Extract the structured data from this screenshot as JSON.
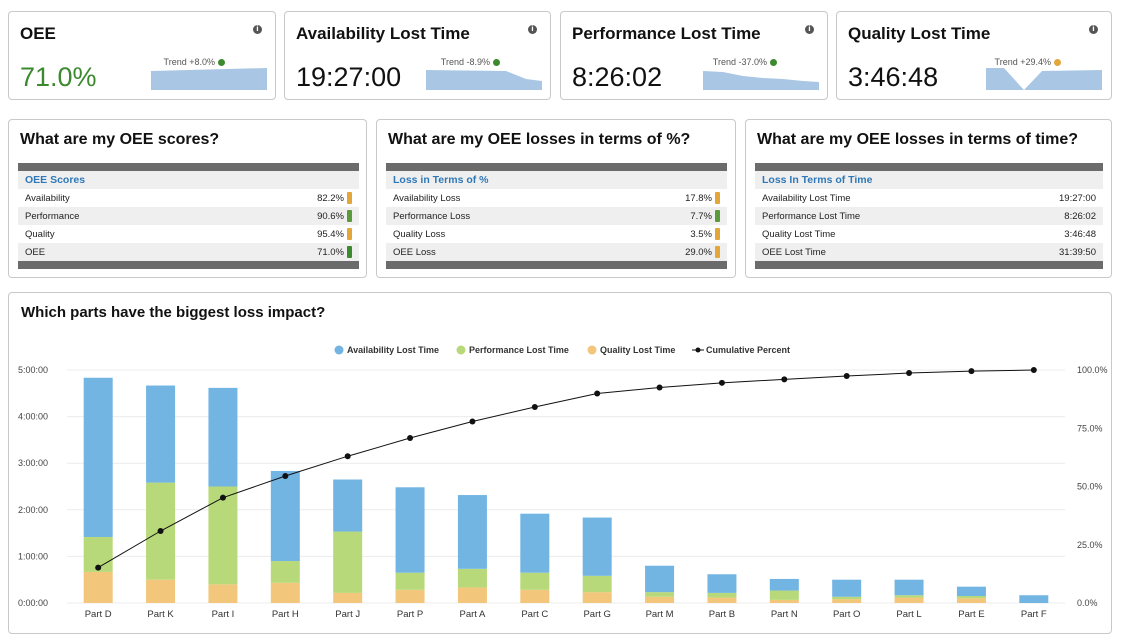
{
  "kpis": [
    {
      "title": "OEE",
      "value": "71.0%",
      "trend": "Trend +8.0%",
      "dot_color": "#3b8a2e"
    },
    {
      "title": "Availability Lost Time",
      "value": "19:27:00",
      "trend": "Trend -8.9%",
      "dot_color": "#3b8a2e"
    },
    {
      "title": "Performance Lost Time",
      "value": "8:26:02",
      "trend": "Trend -37.0%",
      "dot_color": "#3b8a2e"
    },
    {
      "title": "Quality Lost Time",
      "value": "3:46:48",
      "trend": "Trend +29.4%",
      "dot_color": "#e3a63a"
    }
  ],
  "info_icon": "info-icon",
  "panels": [
    {
      "title": "What are my OEE scores?",
      "header": "OEE Scores",
      "rows": [
        {
          "label": "Availability",
          "value": "82.2%",
          "color": "#e3a63a"
        },
        {
          "label": "Performance",
          "value": "90.6%",
          "color": "#5a9a3d"
        },
        {
          "label": "Quality",
          "value": "95.4%",
          "color": "#e3a63a"
        },
        {
          "label": "OEE",
          "value": "71.0%",
          "color": "#3b8a2e"
        }
      ]
    },
    {
      "title": "What are my OEE losses in terms of %?",
      "header": "Loss in Terms of %",
      "rows": [
        {
          "label": "Availability Loss",
          "value": "17.8%",
          "color": "#e3a63a"
        },
        {
          "label": "Performance Loss",
          "value": "7.7%",
          "color": "#5a9a3d"
        },
        {
          "label": "Quality Loss",
          "value": "3.5%",
          "color": "#e3a63a"
        },
        {
          "label": "OEE Loss",
          "value": "29.0%",
          "color": "#e3a63a"
        }
      ]
    },
    {
      "title": "What are my OEE losses in terms of time?",
      "header": "Loss In Terms of Time",
      "rows": [
        {
          "label": "Availability Lost Time",
          "value": "19:27:00"
        },
        {
          "label": "Performance Lost Time",
          "value": "8:26:02"
        },
        {
          "label": "Quality Lost Time",
          "value": "3:46:48"
        },
        {
          "label": "OEE Lost Time",
          "value": "31:39:50"
        }
      ]
    }
  ],
  "chart_title": "Which parts have the biggest loss impact?",
  "colors": {
    "availability": "#72b5e3",
    "performance": "#b8d97a",
    "quality": "#f3c77b",
    "cumulative": "#111111"
  },
  "chart_data": {
    "type": "bar",
    "stacked": true,
    "categories": [
      "Part D",
      "Part K",
      "Part I",
      "Part H",
      "Part J",
      "Part P",
      "Part A",
      "Part C",
      "Part G",
      "Part M",
      "Part B",
      "Part N",
      "Part O",
      "Part L",
      "Part E",
      "Part F"
    ],
    "series": [
      {
        "name": "Availability Lost Time",
        "color": "#72b5e3",
        "values": [
          205,
          125,
          127,
          116,
          67,
          110,
          95,
          76,
          75,
          34,
          24,
          15,
          22,
          20,
          12,
          10
        ]
      },
      {
        "name": "Performance Lost Time",
        "color": "#b8d97a",
        "values": [
          45,
          125,
          126,
          28,
          79,
          22,
          24,
          22,
          21,
          6,
          6,
          12,
          3,
          3,
          3,
          0
        ]
      },
      {
        "name": "Quality Lost Time",
        "color": "#f3c77b",
        "values": [
          40,
          30,
          24,
          26,
          13,
          17,
          20,
          17,
          14,
          8,
          7,
          4,
          5,
          7,
          6,
          0
        ]
      },
      {
        "name": "Cumulative Percent",
        "type": "line",
        "axis": "right",
        "color": "#111111",
        "values": [
          15.2,
          30.9,
          45.2,
          54.5,
          63.0,
          70.8,
          77.9,
          84.1,
          89.9,
          92.5,
          94.5,
          96.0,
          97.4,
          98.7,
          99.5,
          100.0
        ]
      }
    ],
    "y_left_ticks": [
      "0:00:00",
      "1:00:00",
      "2:00:00",
      "3:00:00",
      "4:00:00",
      "5:00:00"
    ],
    "y_left_range_minutes": [
      0,
      300
    ],
    "y_right_ticks": [
      "0.0%",
      "25.0%",
      "50.0%",
      "75.0%",
      "100.0%"
    ],
    "y_right_range": [
      0,
      100
    ],
    "legend": [
      "Availability Lost Time",
      "Performance Lost Time",
      "Quality Lost Time",
      "Cumulative Percent"
    ],
    "legend_position": "top",
    "grid": true
  }
}
